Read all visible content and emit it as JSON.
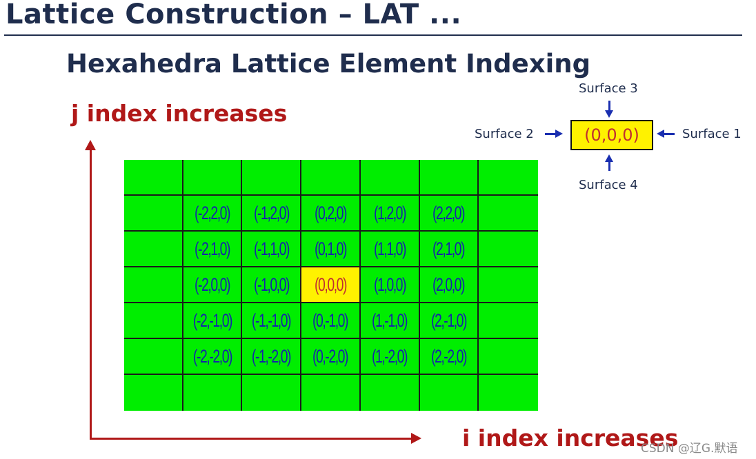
{
  "title": "Lattice Construction – LAT ...",
  "subtitle": "Hexahedra Lattice Element Indexing",
  "axes": {
    "j_label": "j index increases",
    "i_label": "i index increases"
  },
  "grid": {
    "rows": [
      [
        "",
        "",
        "",
        "",
        "",
        "",
        ""
      ],
      [
        "",
        "(-2,2,0)",
        "(-1,2,0)",
        "(0,2,0)",
        "(1,2,0)",
        "(2,2,0)",
        ""
      ],
      [
        "",
        "(-2,1,0)",
        "(-1,1,0)",
        "(0,1,0)",
        "(1,1,0)",
        "(2,1,0)",
        ""
      ],
      [
        "",
        "(-2,0,0)",
        "(-1,0,0)",
        "(0,0,0)",
        "(1,0,0)",
        "(2,0,0)",
        ""
      ],
      [
        "",
        "(-2,-1,0)",
        "(-1,-1,0)",
        "(0,-1,0)",
        "(1,-1,0)",
        "(2,-1,0)",
        ""
      ],
      [
        "",
        "(-2,-2,0)",
        "(-1,-2,0)",
        "(0,-2,0)",
        "(1,-2,0)",
        "(2,-2,0)",
        ""
      ],
      [
        "",
        "",
        "",
        "",
        "",
        "",
        ""
      ]
    ],
    "highlight": "(0,0,0)"
  },
  "legend": {
    "cell_label": "(0,0,0)",
    "surface_1": "Surface 1",
    "surface_2": "Surface 2",
    "surface_3": "Surface 3",
    "surface_4": "Surface 4"
  },
  "colors": {
    "cell_fill": "#00ee00",
    "highlight_fill": "#fff200",
    "axis_color": "#b01818",
    "index_text": "#1525a8"
  },
  "watermark": "CSDN @辽G.默语"
}
